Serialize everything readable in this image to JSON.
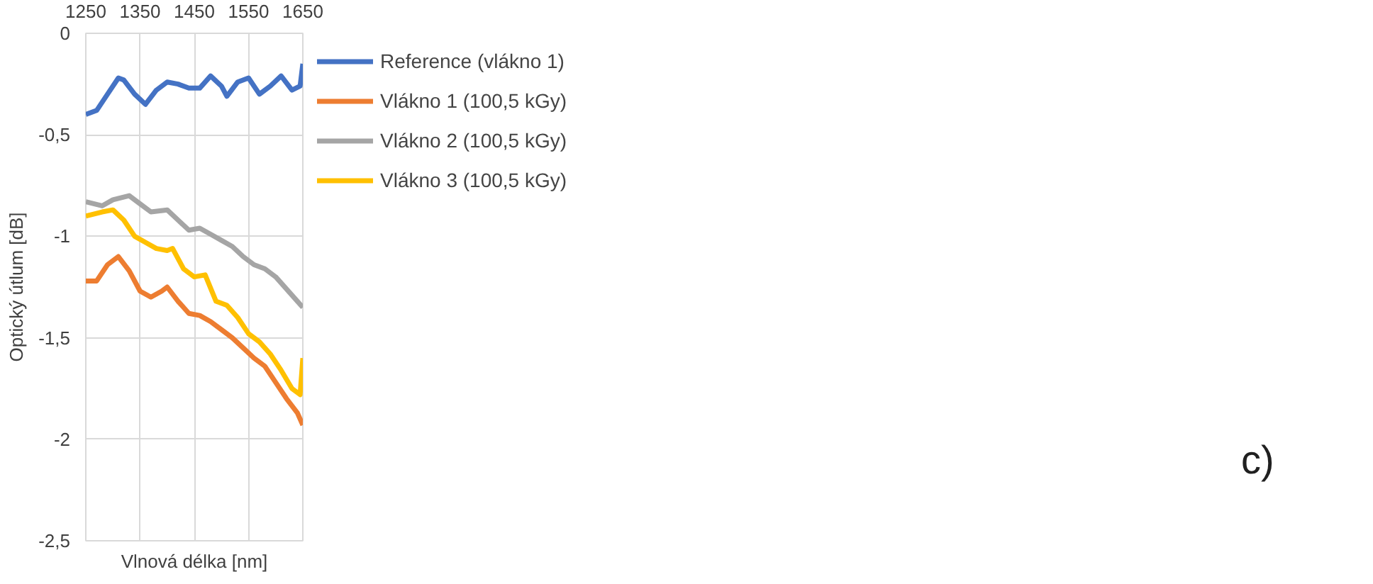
{
  "chart_data": {
    "type": "line",
    "xlabel": "Vlnová délka [nm]",
    "ylabel": "Optický útlum [dB]",
    "xlim": [
      1250,
      1650
    ],
    "xticks": [
      1250,
      1350,
      1450,
      1550,
      1650
    ],
    "ylim": [
      -2.5,
      0
    ],
    "yticks": [
      {
        "value": -2.5,
        "label": "-2,5"
      },
      {
        "value": -2,
        "label": "-2"
      },
      {
        "value": -1.5,
        "label": "-1,5"
      },
      {
        "value": -1,
        "label": "-1"
      },
      {
        "value": -0.5,
        "label": "-0,5"
      },
      {
        "value": 0,
        "label": "0"
      }
    ],
    "grid": true,
    "legend": "right",
    "line_style": "solid",
    "annotations": [
      "c)"
    ],
    "series": [
      {
        "name": "Reference (vlákno 1)",
        "color": "#4472c4",
        "x": [
          1250,
          1270,
          1290,
          1310,
          1320,
          1340,
          1360,
          1380,
          1400,
          1420,
          1440,
          1460,
          1480,
          1500,
          1510,
          1530,
          1550,
          1570,
          1590,
          1610,
          1630,
          1645,
          1650
        ],
        "values": [
          -0.4,
          -0.38,
          -0.3,
          -0.22,
          -0.23,
          -0.3,
          -0.35,
          -0.28,
          -0.24,
          -0.25,
          -0.27,
          -0.27,
          -0.21,
          -0.26,
          -0.31,
          -0.24,
          -0.22,
          -0.3,
          -0.26,
          -0.21,
          -0.28,
          -0.26,
          -0.15
        ]
      },
      {
        "name": "Vlákno 1 (100,5 kGy)",
        "color": "#ed7d31",
        "x": [
          1250,
          1270,
          1290,
          1310,
          1330,
          1350,
          1370,
          1390,
          1400,
          1420,
          1440,
          1460,
          1480,
          1500,
          1520,
          1540,
          1560,
          1580,
          1600,
          1620,
          1640,
          1650
        ],
        "values": [
          -1.22,
          -1.22,
          -1.14,
          -1.1,
          -1.17,
          -1.27,
          -1.3,
          -1.27,
          -1.25,
          -1.32,
          -1.38,
          -1.39,
          -1.42,
          -1.46,
          -1.5,
          -1.55,
          -1.6,
          -1.64,
          -1.72,
          -1.8,
          -1.87,
          -1.93
        ]
      },
      {
        "name": "Vlákno 2 (100,5 kGy)",
        "color": "#a5a5a5",
        "x": [
          1250,
          1280,
          1300,
          1330,
          1350,
          1370,
          1400,
          1420,
          1440,
          1460,
          1480,
          1500,
          1520,
          1540,
          1560,
          1580,
          1600,
          1620,
          1640,
          1650
        ],
        "values": [
          -0.83,
          -0.85,
          -0.82,
          -0.8,
          -0.84,
          -0.88,
          -0.87,
          -0.92,
          -0.97,
          -0.96,
          -0.99,
          -1.02,
          -1.05,
          -1.1,
          -1.14,
          -1.16,
          -1.2,
          -1.26,
          -1.32,
          -1.35
        ]
      },
      {
        "name": "Vlákno 3 (100,5 kGy)",
        "color": "#ffc000",
        "x": [
          1250,
          1280,
          1300,
          1320,
          1340,
          1360,
          1380,
          1400,
          1410,
          1430,
          1450,
          1470,
          1490,
          1510,
          1530,
          1550,
          1570,
          1590,
          1610,
          1630,
          1645,
          1650
        ],
        "values": [
          -0.9,
          -0.88,
          -0.87,
          -0.92,
          -1.0,
          -1.03,
          -1.06,
          -1.07,
          -1.06,
          -1.16,
          -1.2,
          -1.19,
          -1.32,
          -1.34,
          -1.4,
          -1.48,
          -1.52,
          -1.58,
          -1.66,
          -1.75,
          -1.78,
          -1.6
        ]
      }
    ]
  }
}
